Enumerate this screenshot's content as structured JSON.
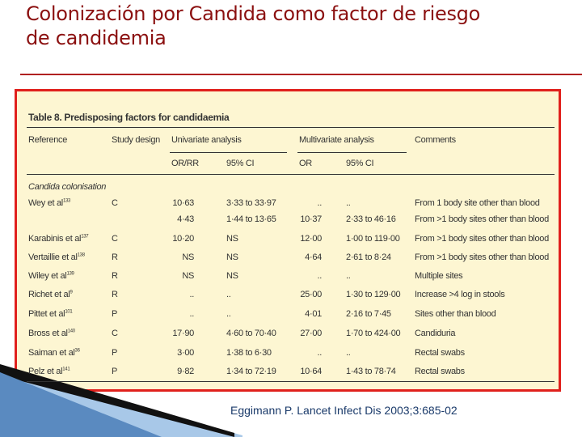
{
  "header": {
    "title_line1": "Colonización por Candida como factor de riesgo",
    "title_line2": "de candidemia"
  },
  "table": {
    "title": "Table 8. Predisposing factors for candidaemia",
    "columns": [
      "Reference",
      "Study design",
      "Univariate analysis",
      "Multivariate analysis",
      "Comments"
    ],
    "subcolumns": [
      "OR/RR",
      "95% CI",
      "OR",
      "95% CI"
    ],
    "section": "Candida colonisation",
    "rows": [
      [
        "Wey et al",
        "133",
        "C",
        "10·63",
        "3·33 to 33·97",
        "..",
        "..",
        "From 1 body site other than blood"
      ],
      [
        null,
        null,
        null,
        "4·43",
        "1·44 to 13·65",
        "10·37",
        "2·33 to 46·16",
        "From >1 body sites other than blood"
      ],
      [
        "Karabinis et al",
        "137",
        "C",
        "10·20",
        "NS",
        "12·00",
        "1·00 to 119·00",
        "From >1 body sites other than blood"
      ],
      [
        "Vertaillie et al",
        "138",
        "R",
        "NS",
        "NS",
        "4·64",
        "2·61 to 8·24",
        "From >1 body sites other than blood"
      ],
      [
        "Wiley et al",
        "139",
        "R",
        "NS",
        "NS",
        "..",
        "..",
        "Multiple sites"
      ],
      [
        "Richet et al",
        "9",
        "R",
        "..",
        "..",
        "25·00",
        "1·30 to 129·00",
        "Increase >4 log in stools"
      ],
      [
        "Pittet et al",
        "101",
        "P",
        "..",
        "..",
        "4·01",
        "2·16 to 7·45",
        "Sites other than blood"
      ],
      [
        "Bross et al",
        "140",
        "C",
        "17·90",
        "4·60 to 70·40",
        "27·00",
        "1·70 to 424·00",
        "Candiduria"
      ],
      [
        "Saiman et al",
        "36",
        "P",
        "3·00",
        "1·38 to 6·30",
        "..",
        "..",
        "Rectal swabs"
      ],
      [
        "Pelz et al",
        "141",
        "P",
        "9·82",
        "1·34 to 72·19",
        "10·64",
        "1·43 to 78·74",
        "Rectal swabs"
      ]
    ]
  },
  "citation": "Eggimann P. Lancet Infect Dis 2003;3:685-02"
}
